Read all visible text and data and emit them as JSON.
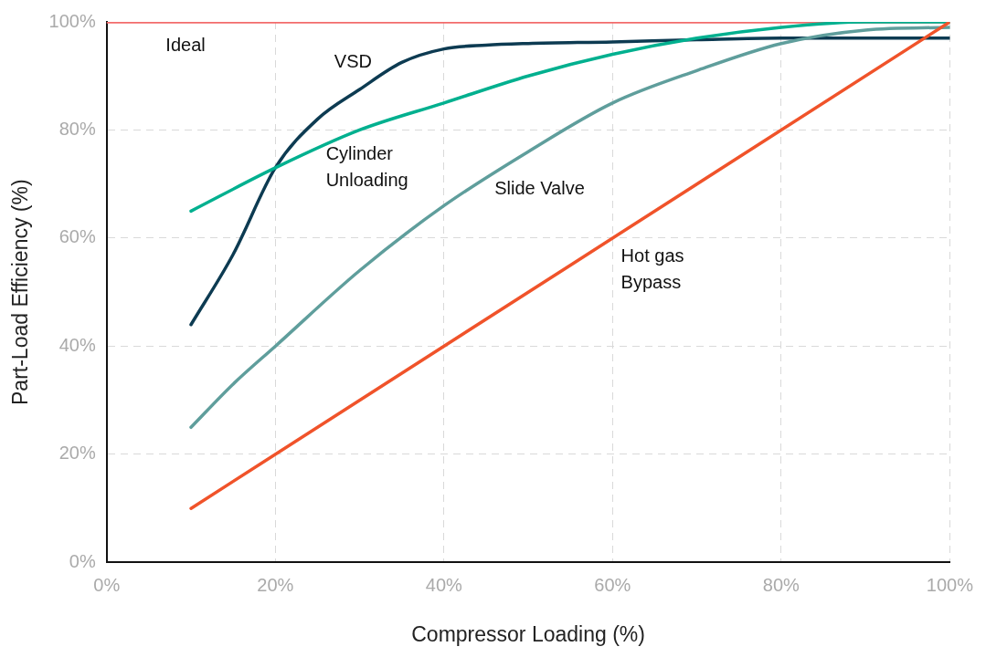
{
  "chart_data": {
    "type": "line",
    "xlabel": "Compressor Loading (%)",
    "ylabel": "Part-Load Efficiency (%)",
    "xlim": [
      0,
      100
    ],
    "ylim": [
      0,
      100
    ],
    "xticks": [
      {
        "value": 0,
        "label": "0%"
      },
      {
        "value": 20,
        "label": "20%"
      },
      {
        "value": 40,
        "label": "40%"
      },
      {
        "value": 60,
        "label": "60%"
      },
      {
        "value": 80,
        "label": "80%"
      },
      {
        "value": 100,
        "label": "100%"
      }
    ],
    "yticks": [
      {
        "value": 0,
        "label": "0%"
      },
      {
        "value": 20,
        "label": "20%"
      },
      {
        "value": 40,
        "label": "40%"
      },
      {
        "value": 60,
        "label": "60%"
      },
      {
        "value": 80,
        "label": "80%"
      },
      {
        "value": 100,
        "label": "100%"
      }
    ],
    "grid": true,
    "legend": false,
    "marker": "none",
    "line_style": "solid",
    "series": [
      {
        "name": "Ideal",
        "color": "#f26b6b",
        "x": [
          0,
          100
        ],
        "values": [
          100,
          100
        ]
      },
      {
        "name": "VSD",
        "color": "#0d3b52",
        "x": [
          10,
          15,
          20,
          25,
          30,
          35,
          40,
          45,
          50,
          60,
          70,
          80,
          100
        ],
        "values": [
          44,
          57,
          73,
          82,
          87.5,
          92.5,
          95,
          95.7,
          96,
          96.3,
          96.7,
          97,
          97
        ]
      },
      {
        "name": "Cylinder\nUnloading",
        "color": "#00b08f",
        "x": [
          10,
          20,
          30,
          40,
          50,
          60,
          70,
          80,
          90,
          100
        ],
        "values": [
          65,
          73,
          80,
          85,
          90,
          94,
          97,
          99,
          100,
          100
        ]
      },
      {
        "name": "Slide Valve",
        "color": "#5f9e9c",
        "x": [
          10,
          15,
          20,
          30,
          40,
          50,
          60,
          70,
          80,
          90,
          100
        ],
        "values": [
          25,
          33,
          40,
          54,
          66,
          76,
          85,
          91,
          96,
          98.5,
          99
        ]
      },
      {
        "name": "Hot gas\nBypass",
        "color": "#f0532a",
        "x": [
          10,
          100
        ],
        "values": [
          10,
          100
        ]
      }
    ]
  }
}
